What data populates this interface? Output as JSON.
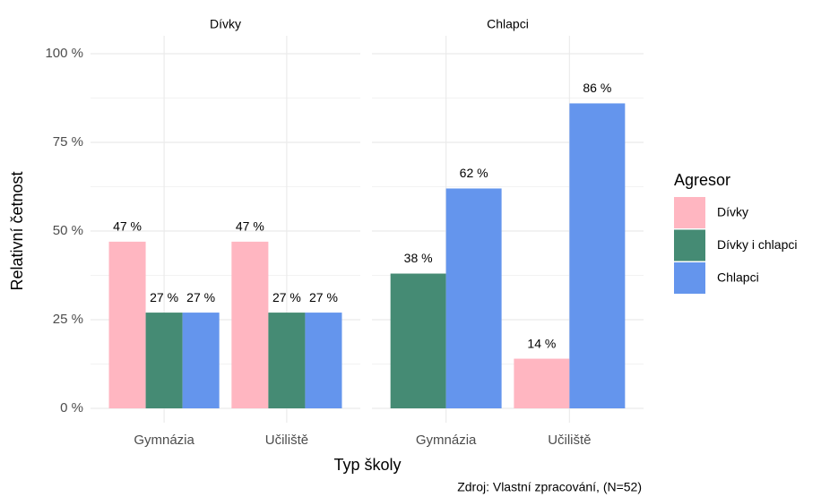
{
  "chart_data": [
    {
      "type": "bar",
      "title": "Dívky",
      "ylabel": "Relativní četnost",
      "xlabel": "Typ školy",
      "legend_title": "Agresor",
      "caption": "Zdroj: Vlastní zpracování, (N=52)",
      "categories": [
        "Gymnázia",
        "Učiliště"
      ],
      "ylim": [
        0,
        100
      ],
      "yticks": [
        {
          "value": 0,
          "label": "0 %"
        },
        {
          "value": 25,
          "label": "25 %"
        },
        {
          "value": 50,
          "label": "50 %"
        },
        {
          "value": 75,
          "label": "75 %"
        },
        {
          "value": 100,
          "label": "100 %"
        }
      ],
      "grid": true,
      "legend": "right",
      "series": [
        {
          "name": "Dívky",
          "color": "#ffb6c1",
          "values": [
            47,
            47
          ],
          "value_labels": [
            "47 %",
            "47 %"
          ]
        },
        {
          "name": "Dívky i chlapci",
          "color": "#458b74",
          "values": [
            27,
            27
          ],
          "value_labels": [
            "27 %",
            "27 %"
          ]
        },
        {
          "name": "Chlapci",
          "color": "#6495ed",
          "values": [
            27,
            27
          ],
          "value_labels": [
            "27 %",
            "27 %"
          ]
        }
      ]
    },
    {
      "type": "bar",
      "title": "Chlapci",
      "categories": [
        "Gymnázia",
        "Učiliště"
      ],
      "ylim": [
        0,
        100
      ],
      "yticks": [
        0,
        25,
        50,
        75,
        100
      ],
      "grid": true,
      "series": [
        {
          "name": "Dívky",
          "color": "#ffb6c1",
          "values": [
            null,
            14
          ],
          "value_labels": [
            null,
            "14 %"
          ]
        },
        {
          "name": "Dívky i chlapci",
          "color": "#458b74",
          "values": [
            38,
            null
          ],
          "value_labels": [
            "38 %",
            null
          ]
        },
        {
          "name": "Chlapci",
          "color": "#6495ed",
          "values": [
            62,
            86
          ],
          "value_labels": [
            "62 %",
            "86 %"
          ]
        }
      ]
    }
  ]
}
